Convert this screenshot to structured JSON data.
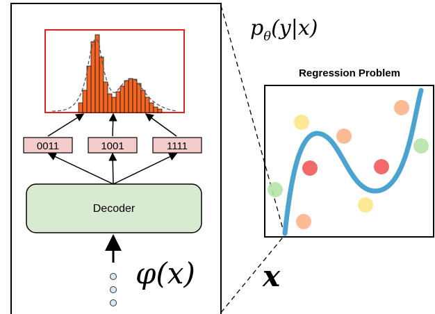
{
  "output_label": {
    "base": "p",
    "subscript": "θ",
    "args": "(y|x)"
  },
  "regression": {
    "title": "Regression Problem"
  },
  "codes": [
    "0011",
    "1001",
    "1111"
  ],
  "decoder": {
    "label": "Decoder"
  },
  "embedding_label": "φ(x)",
  "input_label": "x"
}
